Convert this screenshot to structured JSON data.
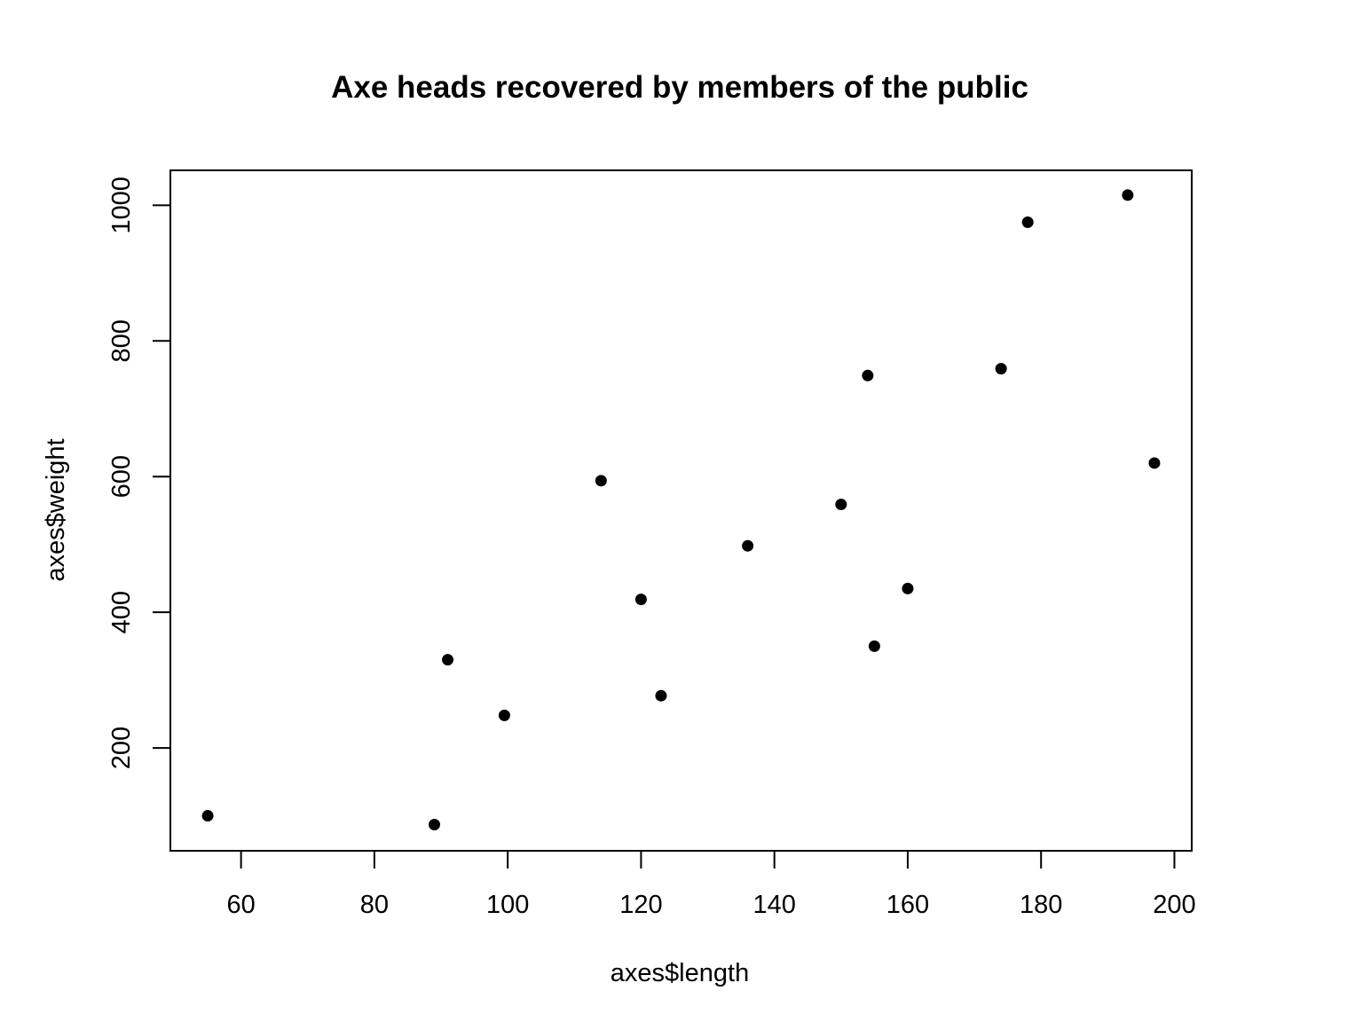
{
  "chart_data": {
    "type": "scatter",
    "title": "Axe heads recovered by members of the public",
    "xlabel": "axes$length",
    "ylabel": "axes$weight",
    "xlim": [
      49.4,
      202.6
    ],
    "ylim": [
      48.4,
      1051.5
    ],
    "x_ticks": [
      60,
      80,
      100,
      120,
      140,
      160,
      180,
      200
    ],
    "y_ticks": [
      200,
      400,
      600,
      800,
      1000
    ],
    "grid": false,
    "marker_color": "#000000",
    "points": [
      {
        "x": 55,
        "y": 100
      },
      {
        "x": 89,
        "y": 87
      },
      {
        "x": 91,
        "y": 330
      },
      {
        "x": 99.5,
        "y": 248
      },
      {
        "x": 114,
        "y": 594
      },
      {
        "x": 120,
        "y": 419
      },
      {
        "x": 123,
        "y": 277
      },
      {
        "x": 136,
        "y": 498
      },
      {
        "x": 150,
        "y": 559
      },
      {
        "x": 154,
        "y": 749
      },
      {
        "x": 155,
        "y": 350
      },
      {
        "x": 160,
        "y": 435
      },
      {
        "x": 174,
        "y": 759
      },
      {
        "x": 178,
        "y": 975
      },
      {
        "x": 193,
        "y": 1015
      },
      {
        "x": 197,
        "y": 620
      }
    ]
  }
}
